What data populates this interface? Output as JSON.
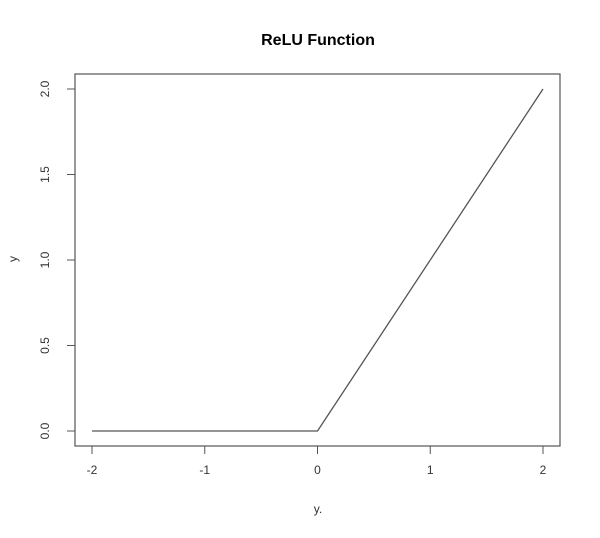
{
  "chart_data": {
    "type": "line",
    "title": "ReLU Function",
    "xlabel": "y.",
    "ylabel": "y",
    "xlim": [
      -2,
      2
    ],
    "ylim": [
      0,
      2
    ],
    "x_ticks": [
      "-2",
      "-1",
      "0",
      "1",
      "2"
    ],
    "y_ticks": [
      "0.0",
      "0.5",
      "1.0",
      "1.5",
      "2.0"
    ],
    "grid": false,
    "series": [
      {
        "x": [
          -2,
          0,
          2
        ],
        "y": [
          0,
          0,
          2
        ]
      }
    ],
    "colors": {
      "line": "#555555",
      "frame": "#555555",
      "text": "#333333"
    }
  }
}
